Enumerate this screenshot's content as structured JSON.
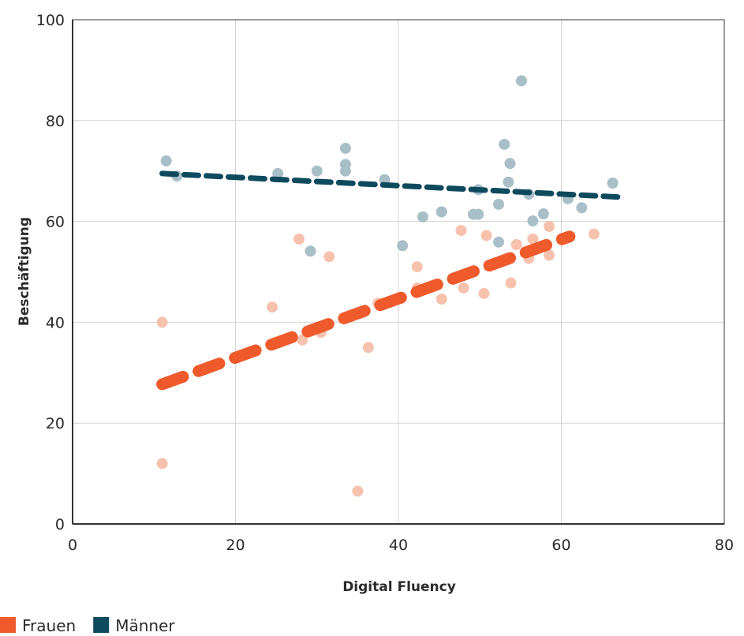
{
  "chart_data": {
    "type": "scatter",
    "xlabel": "Digital Fluency",
    "ylabel": "Beschäftigung",
    "xlim": [
      0,
      80
    ],
    "ylim": [
      0,
      100
    ],
    "xticks": [
      0,
      20,
      40,
      60,
      80
    ],
    "yticks": [
      0,
      20,
      40,
      60,
      80,
      100
    ],
    "grid": true,
    "legend_position": "bottom-left",
    "series": [
      {
        "name": "Frauen",
        "color": "#ee5a2b",
        "point_color": "#f6c2ad",
        "points": [
          [
            11,
            40
          ],
          [
            11,
            12
          ],
          [
            24.5,
            43
          ],
          [
            27.8,
            56.5
          ],
          [
            28.2,
            36.5
          ],
          [
            30.5,
            38
          ],
          [
            31.5,
            53
          ],
          [
            35,
            6.5
          ],
          [
            36.3,
            35
          ],
          [
            37.5,
            43.8
          ],
          [
            42.3,
            51
          ],
          [
            42.3,
            46.8
          ],
          [
            45.3,
            44.6
          ],
          [
            47.7,
            58.2
          ],
          [
            48,
            46.8
          ],
          [
            50.5,
            45.7
          ],
          [
            50.8,
            57.2
          ],
          [
            53.8,
            47.8
          ],
          [
            54.5,
            55.4
          ],
          [
            56,
            52.7
          ],
          [
            56.5,
            56.5
          ],
          [
            58.5,
            53.3
          ],
          [
            58.5,
            59
          ],
          [
            64,
            57.5
          ]
        ],
        "trend": [
          [
            11,
            27.7
          ],
          [
            61,
            57
          ]
        ]
      },
      {
        "name": "Männer",
        "color": "#0d4a5e",
        "point_color": "#a9bfc7",
        "points": [
          [
            11.5,
            72
          ],
          [
            12.8,
            69
          ],
          [
            25.2,
            69.5
          ],
          [
            29.2,
            54.1
          ],
          [
            30,
            70
          ],
          [
            33.5,
            70
          ],
          [
            33.5,
            71.3
          ],
          [
            33.5,
            74.5
          ],
          [
            38.3,
            68.3
          ],
          [
            40.5,
            55.2
          ],
          [
            43,
            60.9
          ],
          [
            45.3,
            61.9
          ],
          [
            49.2,
            61.4
          ],
          [
            49.8,
            61.4
          ],
          [
            49.8,
            66.3
          ],
          [
            52.3,
            63.4
          ],
          [
            52.3,
            55.9
          ],
          [
            53,
            75.3
          ],
          [
            53.5,
            67.8
          ],
          [
            53.7,
            71.5
          ],
          [
            55.1,
            87.9
          ],
          [
            56,
            65.4
          ],
          [
            56.5,
            60.1
          ],
          [
            57.8,
            61.5
          ],
          [
            60.8,
            64.5
          ],
          [
            62.5,
            62.7
          ],
          [
            66.3,
            67.6
          ]
        ],
        "trend": [
          [
            11,
            69.5
          ],
          [
            67.5,
            64.8
          ]
        ]
      }
    ]
  }
}
